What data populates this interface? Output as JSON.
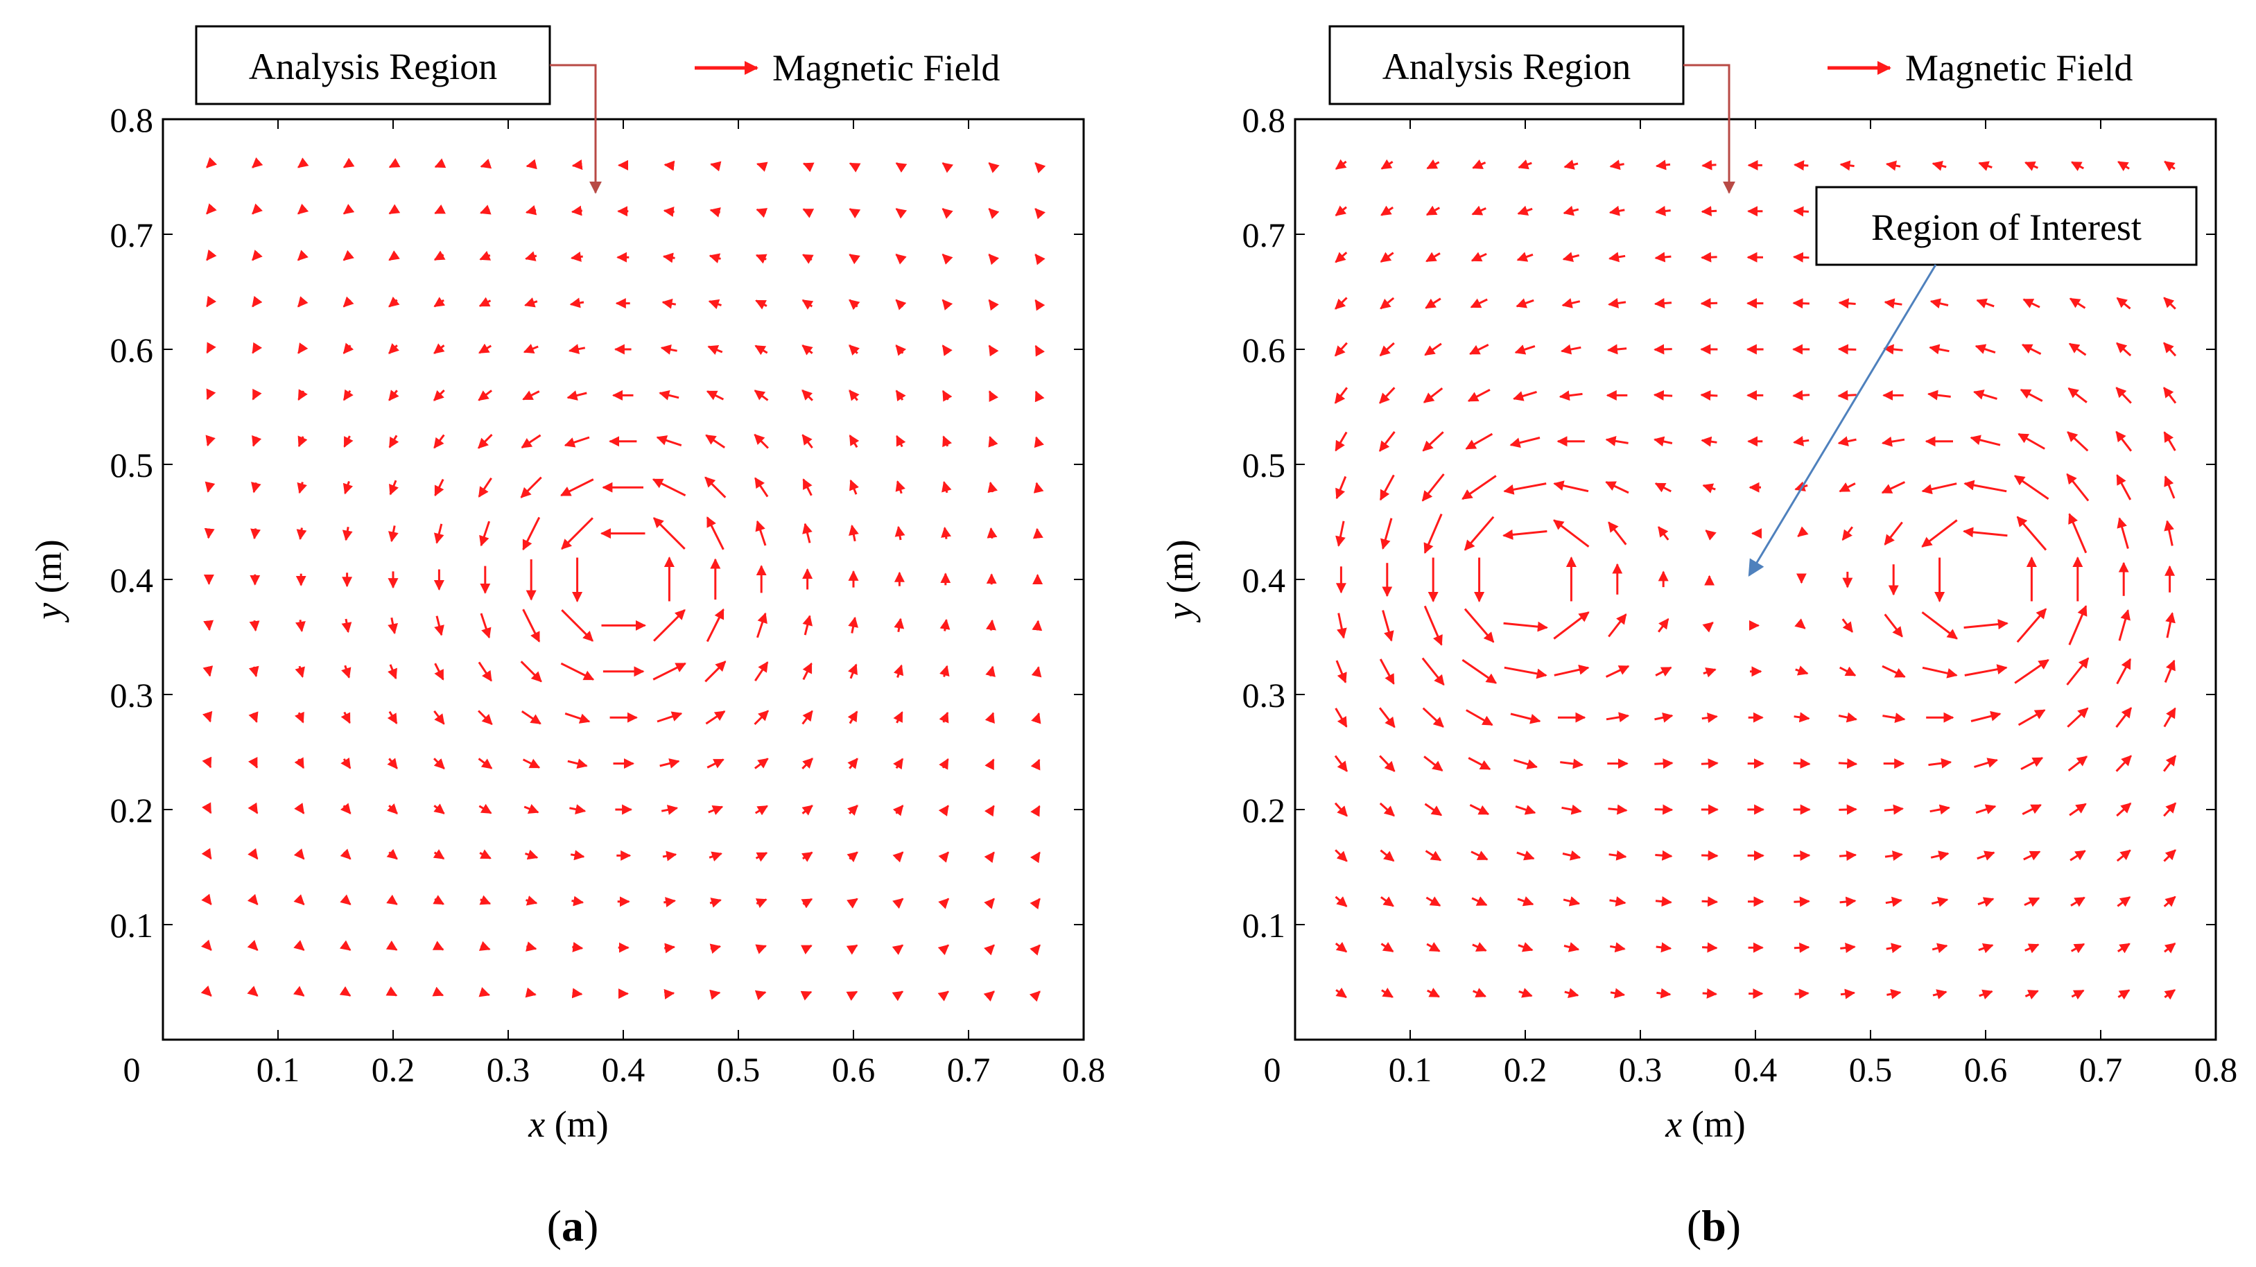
{
  "colors": {
    "field_arrow": "#ff1a1a",
    "analysis_pointer": "#b84a45",
    "interest_pointer": "#4f81bd",
    "axis": "#000000"
  },
  "chart_data": [
    {
      "id": "a",
      "type": "quiver",
      "caption": "(a)",
      "caption_letter": "a",
      "xlabel": "x (m)",
      "xlabel_var": "x",
      "xlabel_unit": "(m)",
      "ylabel": "y (m)",
      "ylabel_var": "y",
      "ylabel_unit": "(m)",
      "xlim": [
        0,
        0.8
      ],
      "ylim": [
        0,
        0.8
      ],
      "xticks": [
        0.1,
        0.2,
        0.3,
        0.4,
        0.5,
        0.6,
        0.7,
        0.8
      ],
      "yticks": [
        0.1,
        0.2,
        0.3,
        0.4,
        0.5,
        0.6,
        0.7,
        0.8
      ],
      "origin_label": "0",
      "legend": "Magnetic Field",
      "grid_x": [
        0.04,
        0.76,
        19
      ],
      "grid_y": [
        0.04,
        0.76,
        19
      ],
      "sources": [
        {
          "x": 0.4,
          "y": 0.4,
          "sign": 1,
          "label": ""
        }
      ],
      "annotations": [
        {
          "name": "analysis-region-label",
          "text": "Analysis Region",
          "target": [
            0.38,
            0.73
          ]
        }
      ]
    },
    {
      "id": "b",
      "type": "quiver",
      "caption": "(b)",
      "caption_letter": "b",
      "xlabel": "x (m)",
      "xlabel_var": "x",
      "xlabel_unit": "(m)",
      "ylabel": "y (m)",
      "ylabel_var": "y",
      "ylabel_unit": "(m)",
      "xlim": [
        0,
        0.8
      ],
      "ylim": [
        0,
        0.8
      ],
      "xticks": [
        0.1,
        0.2,
        0.3,
        0.4,
        0.5,
        0.6,
        0.7,
        0.8
      ],
      "yticks": [
        0.1,
        0.2,
        0.3,
        0.4,
        0.5,
        0.6,
        0.7,
        0.8
      ],
      "origin_label": "0",
      "legend": "Magnetic Field",
      "grid_x": [
        0.04,
        0.76,
        19
      ],
      "grid_y": [
        0.04,
        0.76,
        19
      ],
      "sources": [
        {
          "x": 0.2,
          "y": 0.4,
          "sign": 1
        },
        {
          "x": 0.6,
          "y": 0.4,
          "sign": 1
        }
      ],
      "annotations": [
        {
          "name": "analysis-region-label",
          "text": "Analysis Region",
          "target": [
            0.38,
            0.73
          ]
        },
        {
          "name": "region-of-interest-label",
          "text": "Region of Interest",
          "target": [
            0.39,
            0.4
          ]
        }
      ]
    }
  ]
}
